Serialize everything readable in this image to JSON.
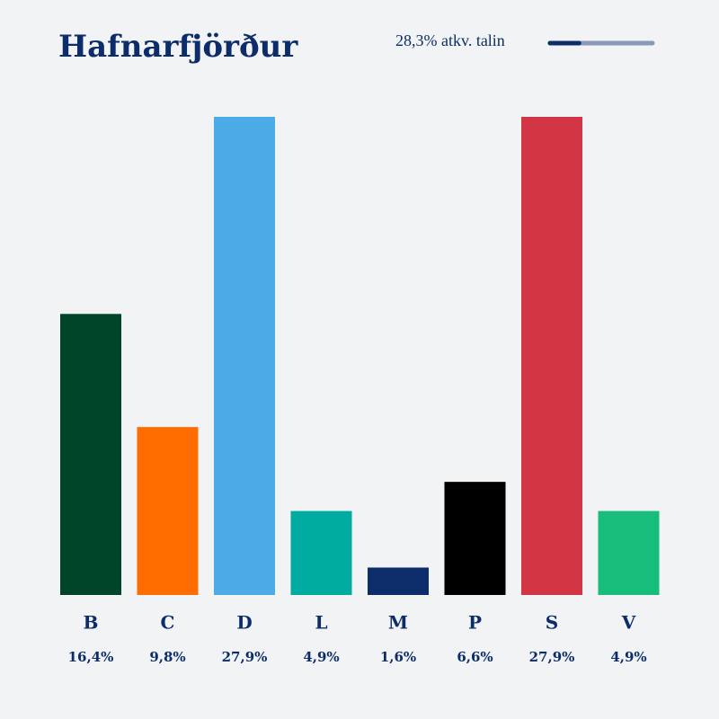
{
  "chart_data": {
    "type": "bar",
    "title": "Hafnarfjörður",
    "counted_label": "28,3% atkv. talin",
    "counted": 28.3,
    "categories": [
      "B",
      "C",
      "D",
      "L",
      "M",
      "P",
      "S",
      "V"
    ],
    "values": [
      16.4,
      9.8,
      27.9,
      4.9,
      1.6,
      6.6,
      27.9,
      4.9
    ],
    "value_labels": [
      "16,4%",
      "9,8%",
      "27,9%",
      "4,9%",
      "1,6%",
      "6,6%",
      "27,9%",
      "4,9%"
    ],
    "colors": [
      "#00452a",
      "#ff6c00",
      "#4aabe6",
      "#00ab9f",
      "#0c2d69",
      "#000000",
      "#d23543",
      "#16bd7b"
    ]
  }
}
